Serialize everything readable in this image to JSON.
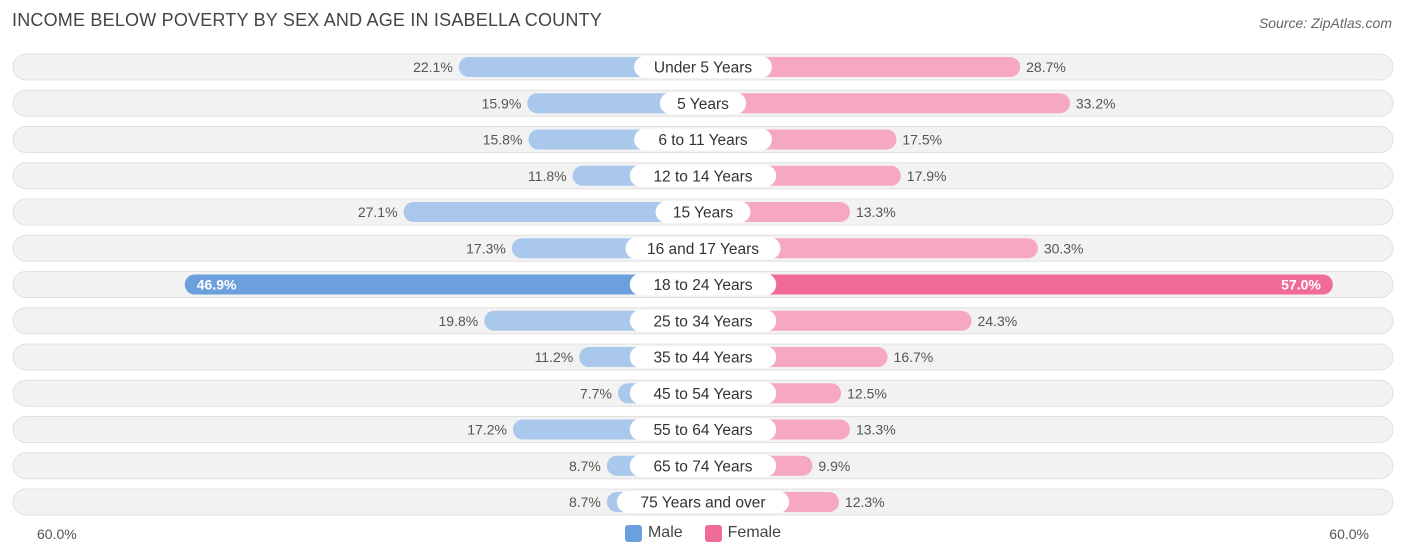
{
  "title": "INCOME BELOW POVERTY BY SEX AND AGE IN ISABELLA COUNTY",
  "source": "Source: ZipAtlas.com",
  "colors": {
    "male": "#6ca0dc",
    "male_light": "#a9c8ec",
    "female": "#f06b96",
    "female_light": "#f7a8c1"
  },
  "chart_data": {
    "type": "bar",
    "orientation": "horizontal-diverging",
    "title": "INCOME BELOW POVERTY BY SEX AND AGE IN ISABELLA COUNTY",
    "categories": [
      "Under 5 Years",
      "5 Years",
      "6 to 11 Years",
      "12 to 14 Years",
      "15 Years",
      "16 and 17 Years",
      "18 to 24 Years",
      "25 to 34 Years",
      "35 to 44 Years",
      "45 to 54 Years",
      "55 to 64 Years",
      "65 to 74 Years",
      "75 Years and over"
    ],
    "series": [
      {
        "name": "Male",
        "values": [
          22.1,
          15.9,
          15.8,
          11.8,
          27.1,
          17.3,
          46.9,
          19.8,
          11.2,
          7.7,
          17.2,
          8.7,
          8.7
        ],
        "labels": [
          "22.1%",
          "15.9%",
          "15.8%",
          "11.8%",
          "27.1%",
          "17.3%",
          "46.9%",
          "19.8%",
          "11.2%",
          "7.7%",
          "17.2%",
          "8.7%",
          "8.7%"
        ]
      },
      {
        "name": "Female",
        "values": [
          28.7,
          33.2,
          17.5,
          17.9,
          13.3,
          30.3,
          57.0,
          24.3,
          16.7,
          12.5,
          13.3,
          9.9,
          12.3
        ],
        "labels": [
          "28.7%",
          "33.2%",
          "17.5%",
          "17.9%",
          "13.3%",
          "30.3%",
          "57.0%",
          "24.3%",
          "16.7%",
          "12.5%",
          "13.3%",
          "9.9%",
          "12.3%"
        ]
      }
    ],
    "xlim": [
      -60,
      60
    ],
    "axis_left_label": "60.0%",
    "axis_right_label": "60.0%",
    "legend": [
      "Male",
      "Female"
    ]
  }
}
